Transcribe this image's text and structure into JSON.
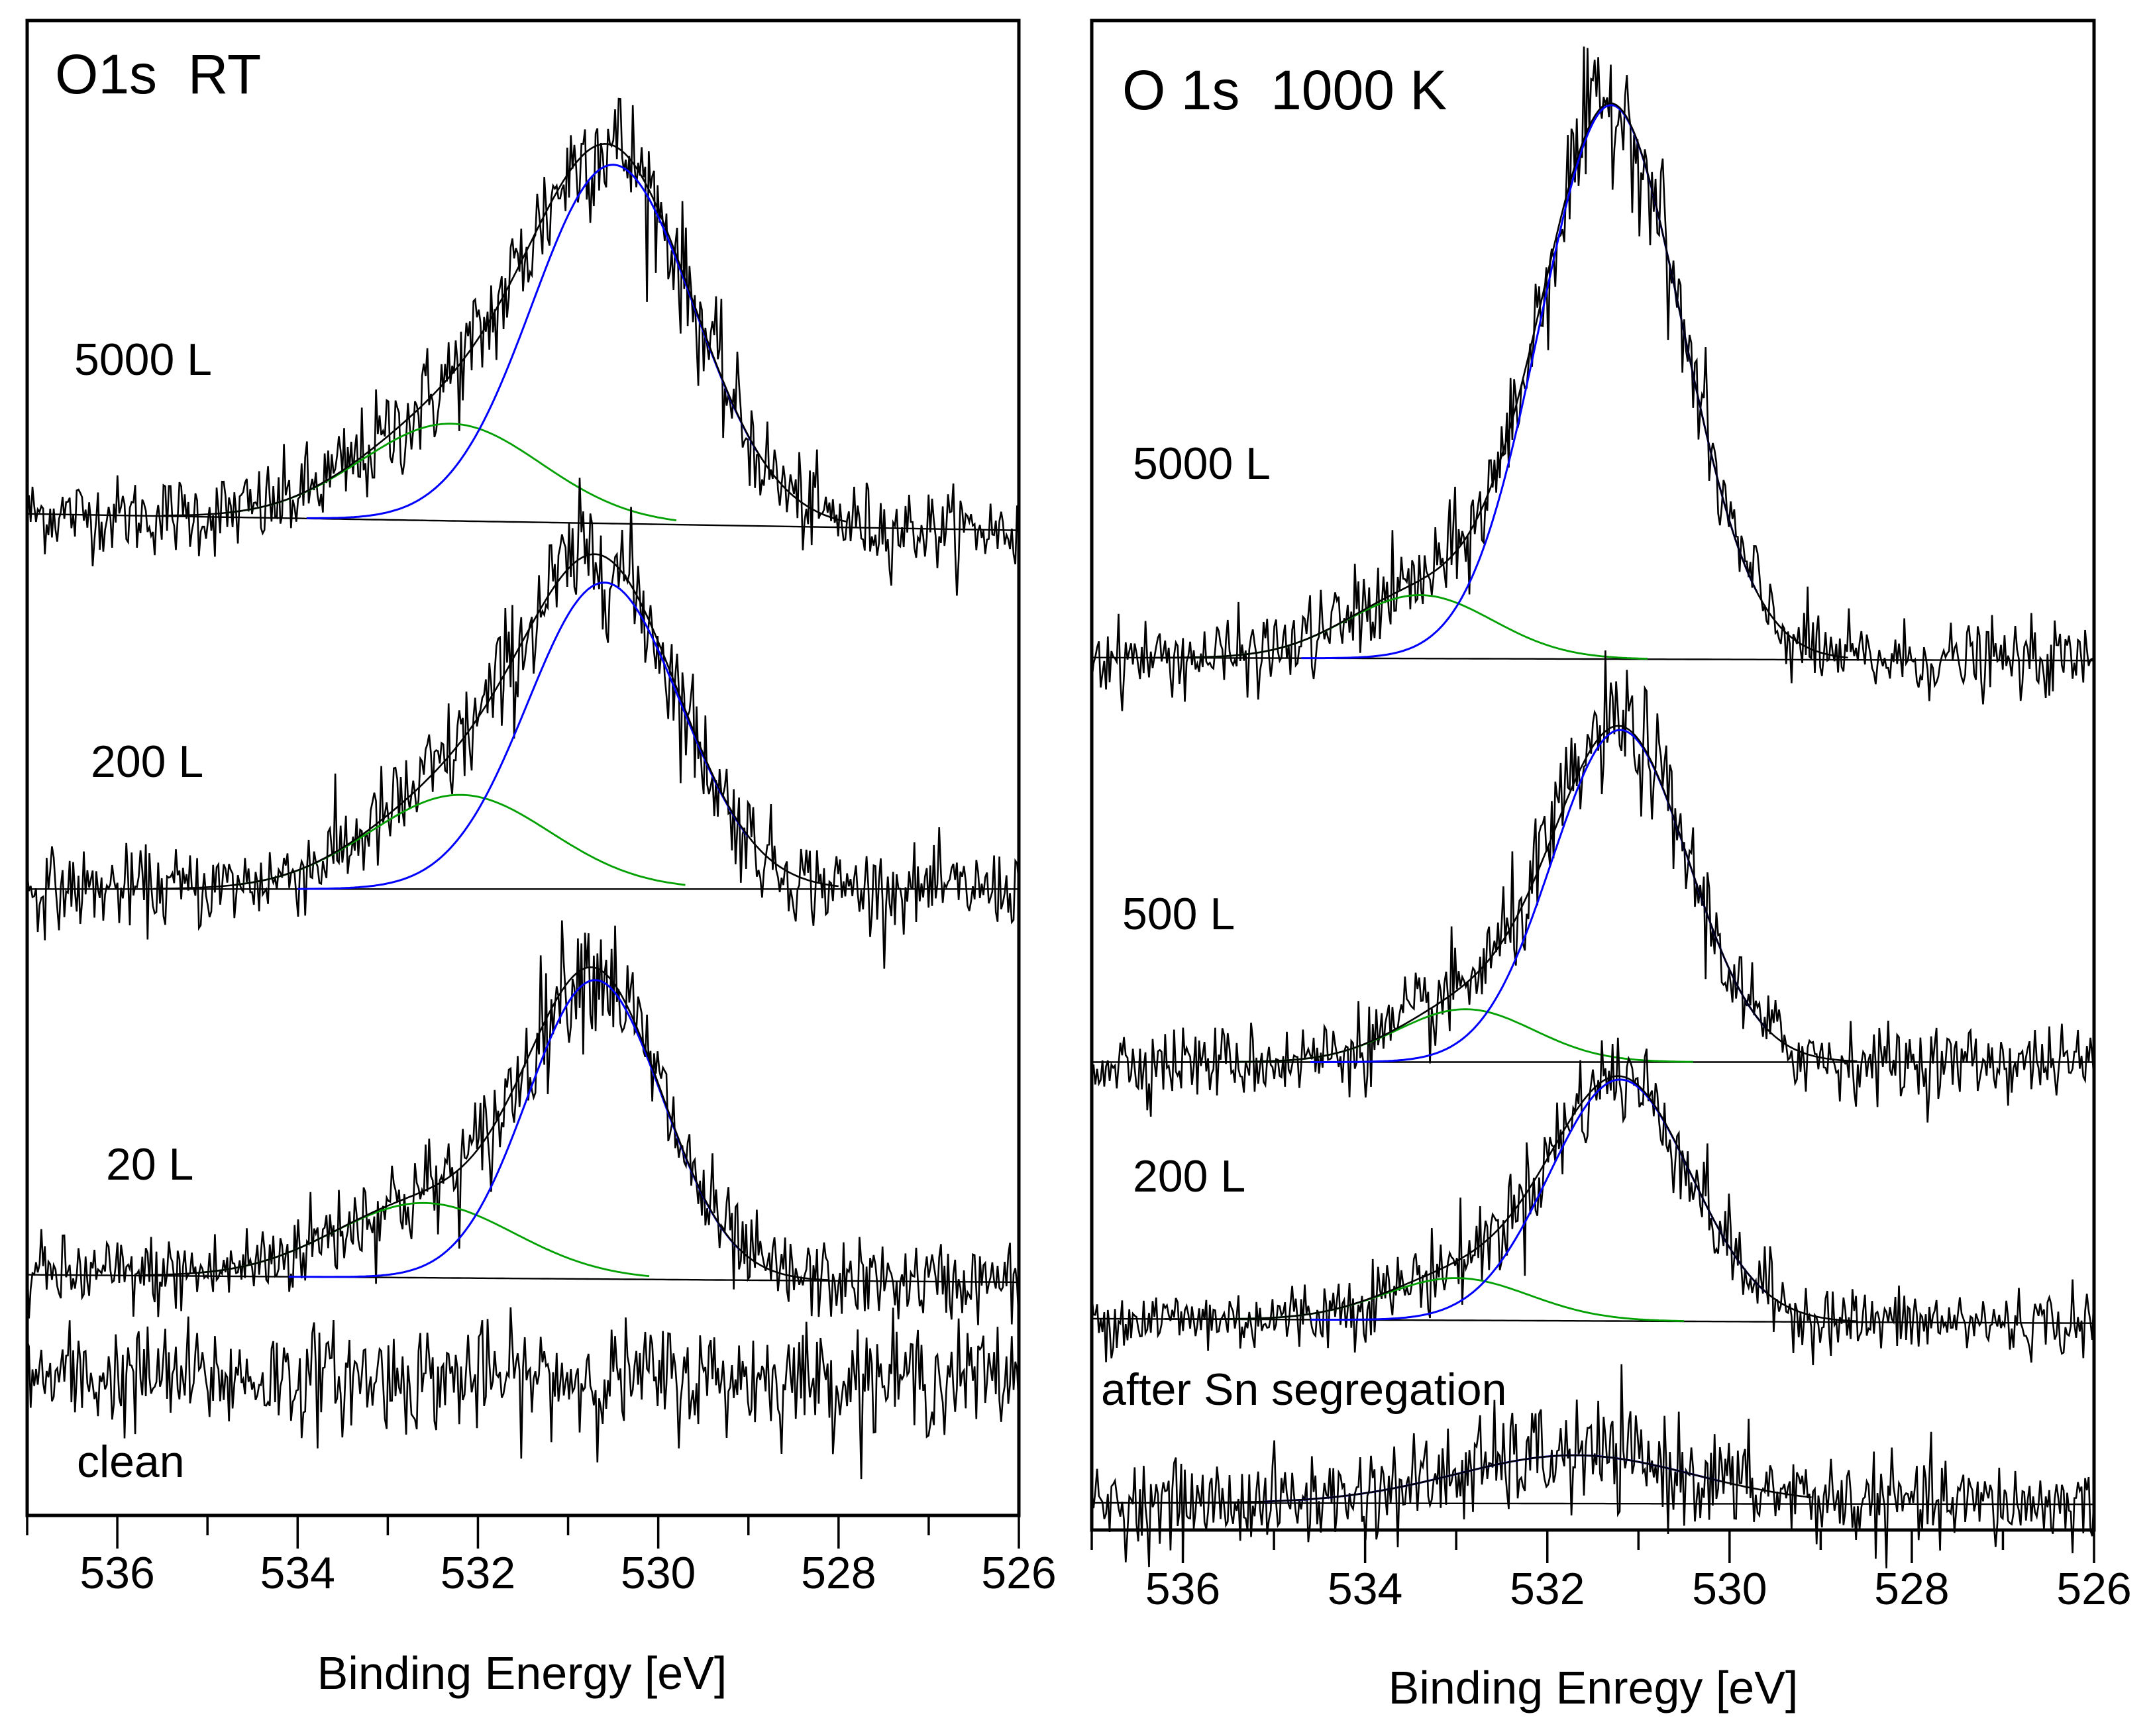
{
  "chart_data": [
    {
      "type": "line",
      "title": "O1s  RT",
      "xlabel": "Binding Energy [eV]",
      "ylabel": "",
      "xlim": [
        537,
        526
      ],
      "ylim": [
        0,
        100
      ],
      "x_ticks": [
        536,
        534,
        532,
        530,
        528,
        526
      ],
      "x_tick_labels": [
        "536",
        "534",
        "532",
        "530",
        "528",
        "526"
      ],
      "grid": false,
      "series_colors": {
        "data": "#000000",
        "fit": "#000000",
        "main_component": "#0000ff",
        "second_component": "#00a000",
        "background": "#000000"
      },
      "spectra": [
        {
          "label": "5000 L",
          "baseline": [
            67.0,
            65.9
          ],
          "main_peak": {
            "center": 530.5,
            "height": 24.0,
            "sigma": 0.9
          },
          "second_peak": {
            "center": 532.3,
            "height": 6.5,
            "sigma": 1.0
          },
          "noise": 1.3
        },
        {
          "label": "200 L",
          "baseline": [
            41.9,
            41.9
          ],
          "main_peak": {
            "center": 530.6,
            "height": 20.5,
            "sigma": 0.85
          },
          "second_peak": {
            "center": 532.2,
            "height": 6.3,
            "sigma": 1.0
          },
          "noise": 1.3
        },
        {
          "label": "20 L",
          "baseline": [
            16.1,
            15.6
          ],
          "main_peak": {
            "center": 530.7,
            "height": 20.0,
            "sigma": 0.75
          },
          "second_peak": {
            "center": 532.6,
            "height": 5.0,
            "sigma": 1.0
          },
          "noise": 1.3
        },
        {
          "label": "clean",
          "baseline": [
            9.2,
            9.2
          ],
          "main_peak": null,
          "second_peak": null,
          "noise": 1.8
        }
      ]
    },
    {
      "type": "line",
      "title": "O 1s  1000 K",
      "xlabel": "Binding Enregy [eV]",
      "ylabel": "",
      "xlim": [
        537,
        526
      ],
      "ylim": [
        0,
        100
      ],
      "x_ticks": [
        536,
        534,
        532,
        530,
        528,
        526
      ],
      "x_tick_labels": [
        "536",
        "534",
        "532",
        "530",
        "528",
        "526"
      ],
      "grid": false,
      "series_colors": {
        "data": "#000000",
        "fit": "#000000",
        "main_component": "#0000ff",
        "second_component": "#00a000",
        "background": "#000000"
      },
      "spectra": [
        {
          "label": "5000 L",
          "baseline": [
            57.8,
            57.6
          ],
          "main_peak": {
            "center": 531.3,
            "height": 36.7,
            "sigma": 0.78
          },
          "second_peak": {
            "center": 533.4,
            "height": 4.2,
            "sigma": 0.8
          },
          "noise": 1.2
        },
        {
          "label": "500 L",
          "baseline": [
            31.0,
            31.0
          ],
          "main_peak": {
            "center": 531.2,
            "height": 22.0,
            "sigma": 0.75
          },
          "second_peak": {
            "center": 532.9,
            "height": 3.5,
            "sigma": 0.75
          },
          "noise": 1.2
        },
        {
          "label": "200 L",
          "baseline": [
            14.0,
            13.7
          ],
          "main_peak": {
            "center": 531.2,
            "height": 16.0,
            "sigma": 0.78
          },
          "second_peak": {
            "center": 533.0,
            "height": 2.8,
            "sigma": 0.8
          },
          "noise": 1.1
        },
        {
          "label": "after Sn segregation",
          "baseline": [
            1.8,
            1.7
          ],
          "main_peak": {
            "center": 531.7,
            "height": 3.2,
            "sigma": 1.3
          },
          "second_peak": null,
          "noise": 1.4
        }
      ]
    }
  ]
}
